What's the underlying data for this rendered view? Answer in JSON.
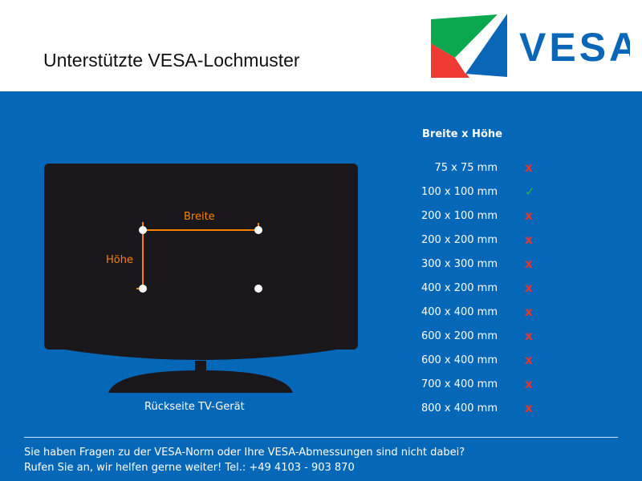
{
  "header": {
    "title": "Unterstützte VESA-Lochmuster",
    "logo_text": "VESA"
  },
  "diagram": {
    "width_label": "Breite",
    "height_label": "Höhe",
    "caption": "Rückseite TV-Gerät",
    "accent": "#ff8000"
  },
  "table": {
    "header": "Breite x Höhe",
    "rows": [
      {
        "size": "75 x 75 mm",
        "supported": false,
        "mark": "x"
      },
      {
        "size": "100 x 100 mm",
        "supported": true,
        "mark": "✓"
      },
      {
        "size": "200 x 100 mm",
        "supported": false,
        "mark": "x"
      },
      {
        "size": "200 x 200 mm",
        "supported": false,
        "mark": "x"
      },
      {
        "size": "300 x 300 mm",
        "supported": false,
        "mark": "x"
      },
      {
        "size": "400 x 200 mm",
        "supported": false,
        "mark": "x"
      },
      {
        "size": "400 x 400 mm",
        "supported": false,
        "mark": "x"
      },
      {
        "size": "600 x 200 mm",
        "supported": false,
        "mark": "x"
      },
      {
        "size": "600 x 400 mm",
        "supported": false,
        "mark": "x"
      },
      {
        "size": "700 x 400 mm",
        "supported": false,
        "mark": "x"
      },
      {
        "size": "800 x 400 mm",
        "supported": false,
        "mark": "x"
      }
    ]
  },
  "footer": {
    "line1": "Sie haben Fragen zu der VESA-Norm oder Ihre VESA-Abmessungen sind nicht dabei?",
    "line2": "Rufen Sie an, wir helfen gerne weiter! Tel.: +49 4103 - 903 870"
  },
  "colors": {
    "background": "#0467b7",
    "yes": "#2fb34a",
    "no": "#e8342f"
  }
}
